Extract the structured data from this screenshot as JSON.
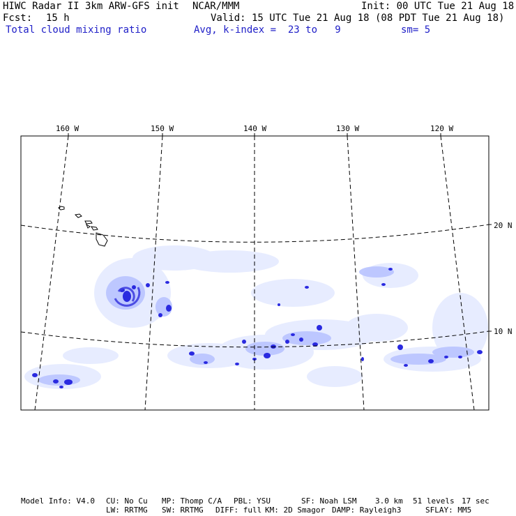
{
  "header": {
    "title": "HIWC Radar II 3km ARW-GFS init",
    "org": "NCAR/MMM",
    "init": "Init: 00 UTC Tue 21 Aug 18",
    "fcst_label": "Fcst:",
    "fcst_value": "15 h",
    "valid": "Valid: 15 UTC Tue 21 Aug 18 (08 PDT Tue 21 Aug 18)",
    "field": "Total cloud mixing ratio",
    "avg": "Avg, k-index =  23 to   9",
    "sm": "sm= 5"
  },
  "map": {
    "lon_labels": [
      "160 W",
      "150 W",
      "140 W",
      "130 W",
      "120 W"
    ],
    "lat_labels": [
      "20 N",
      "10 N"
    ],
    "cloud_color": "#2a2ae0",
    "cloud_light_color": "#dfe6ff"
  },
  "footer": {
    "model_info": "Model Info: V4.0",
    "cu": "CU: No Cu",
    "mp": "MP: Thomp C/A",
    "pbl": "PBL: YSU",
    "sf": "SF: Noah LSM",
    "res": "3.0 km",
    "levels": "51 levels",
    "sec": "17 sec",
    "lw": "LW: RRTMG",
    "sw": "SW: RRTMG",
    "diff": "DIFF: full",
    "km": "KM: 2D Smagor",
    "damp": "DAMP: Rayleigh3",
    "sflay": "SFLAY: MM5"
  }
}
